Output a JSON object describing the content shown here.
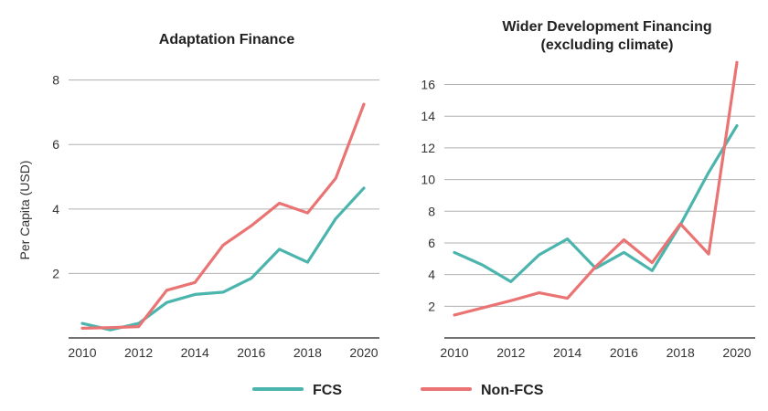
{
  "colors": {
    "fcs": "#4bb5ad",
    "nonfcs": "#ea7373",
    "grid": "#b0b0b0",
    "axis": "#444444"
  },
  "legend": {
    "fcs_label": "FCS",
    "nonfcs_label": "Non-FCS"
  },
  "chart_data": [
    {
      "type": "line",
      "title": [
        "Adaptation Finance"
      ],
      "ylabel": "Per Capita (USD)",
      "xlabel": "",
      "x": [
        2010,
        2011,
        2012,
        2013,
        2014,
        2015,
        2016,
        2017,
        2018,
        2019,
        2020
      ],
      "xticks": [
        "2010",
        "2012",
        "2014",
        "2016",
        "2018",
        "2020"
      ],
      "yticks": [
        "2",
        "4",
        "6",
        "8"
      ],
      "ylim": [
        0,
        8.5
      ],
      "series": [
        {
          "name": "FCS",
          "values": [
            0.45,
            0.25,
            0.45,
            1.1,
            1.35,
            1.42,
            1.85,
            2.75,
            2.35,
            3.7,
            4.65
          ]
        },
        {
          "name": "Non-FCS",
          "values": [
            0.3,
            0.32,
            0.35,
            1.48,
            1.72,
            2.88,
            3.48,
            4.18,
            3.88,
            4.95,
            7.25
          ]
        }
      ]
    },
    {
      "type": "line",
      "title": [
        "Wider Development Financing",
        "(excluding climate)"
      ],
      "ylabel": "",
      "xlabel": "",
      "x": [
        2010,
        2011,
        2012,
        2013,
        2014,
        2015,
        2016,
        2017,
        2018,
        2019,
        2020
      ],
      "xticks": [
        "2010",
        "2012",
        "2014",
        "2016",
        "2018",
        "2020"
      ],
      "yticks": [
        "2",
        "4",
        "6",
        "8",
        "10",
        "12",
        "14",
        "16"
      ],
      "ylim": [
        0,
        17.3
      ],
      "series": [
        {
          "name": "FCS",
          "values": [
            5.4,
            4.6,
            3.55,
            5.25,
            6.25,
            4.4,
            5.4,
            4.25,
            7.15,
            10.45,
            13.4
          ]
        },
        {
          "name": "Non-FCS",
          "values": [
            1.45,
            1.9,
            2.35,
            2.85,
            2.5,
            4.5,
            6.2,
            4.75,
            7.2,
            5.3,
            17.4
          ]
        }
      ]
    }
  ]
}
